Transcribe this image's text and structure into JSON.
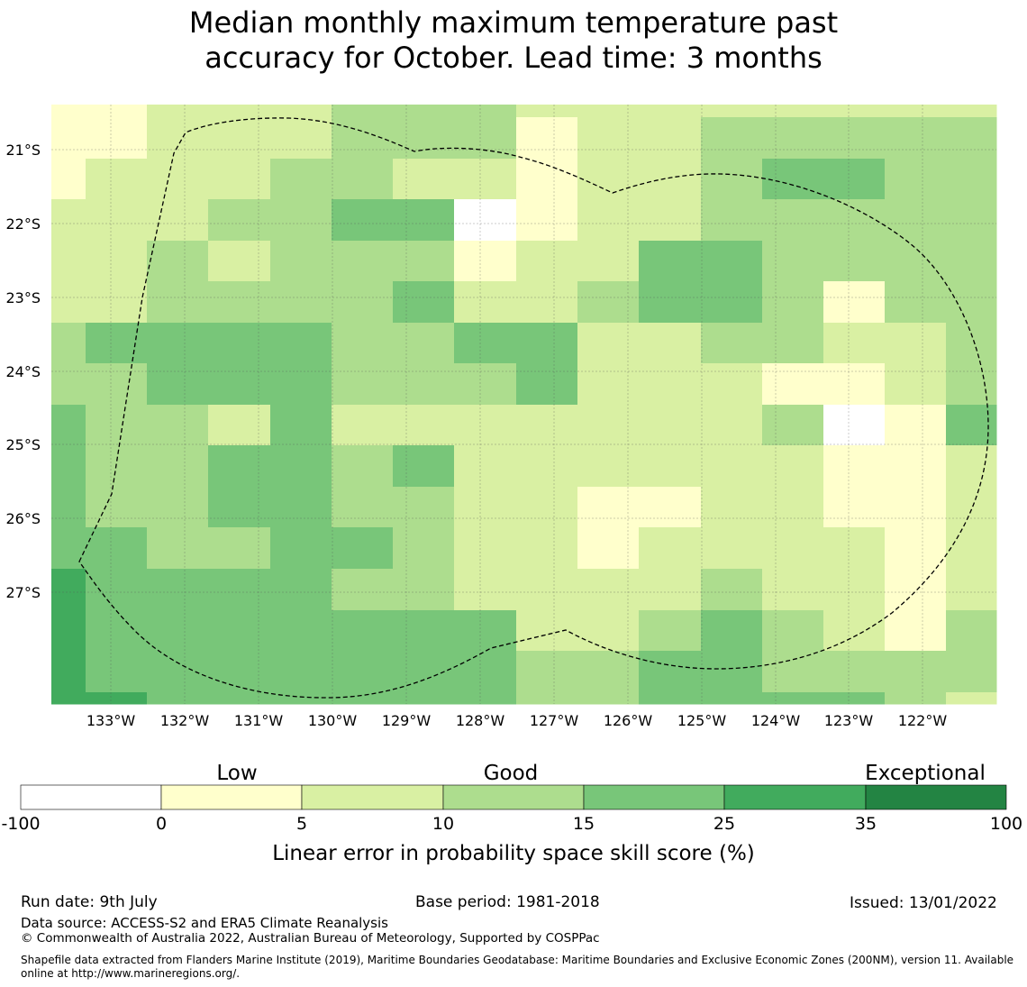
{
  "title_line1": "Median monthly maximum temperature past",
  "title_line2": "accuracy for October. Lead time: 3 months",
  "map": {
    "lat_labels": [
      "21°S",
      "22°S",
      "23°S",
      "24°S",
      "25°S",
      "26°S",
      "27°S"
    ],
    "lon_labels": [
      "133°W",
      "132°W",
      "131°W",
      "130°W",
      "129°W",
      "128°W",
      "127°W",
      "126°W",
      "125°W",
      "124°W",
      "123°W",
      "122°W"
    ],
    "level_colors": [
      "#ffffff",
      "#ffffcc",
      "#d9f0a3",
      "#addd8e",
      "#78c679",
      "#41ab5d",
      "#238443"
    ],
    "grid_levels": [
      "1122233322222",
      "1222332223333",
      "2233322103333",
      "3223343344333",
      "3222233214443",
      "3224434213433",
      "3444332442333",
      "3444332442333",
      "4443322222233",
      "4433322222223",
      "4344322222233",
      "4343332211122",
      "4334343222111",
      "4434433222111",
      "5433332222211",
      "5433333223221",
      "5434333221223",
      "5444344322223",
      "5444444332222",
      "5444444331112",
      "5444444331113",
      "5444444344113",
      "5444444344113",
      "5444333334333",
      "5444443333333",
      "5444444333332",
      "5444444333332",
      "4444444333332",
      "4444444333332",
      "5444444333332"
    ],
    "grid_row_levels": [
      "1122222222223",
      "1333332223333",
      "2333332223333",
      "2323333223333"
    ]
  },
  "colorbar": {
    "ticks": [
      "-100",
      "0",
      "5",
      "10",
      "15",
      "25",
      "35",
      "100"
    ],
    "colors": [
      "#ffffff",
      "#ffffcc",
      "#d9f0a3",
      "#addd8e",
      "#78c679",
      "#41ab5d",
      "#238443"
    ],
    "category_low": "Low",
    "category_good": "Good",
    "category_exceptional": "Exceptional",
    "label": "Linear error in probability space skill score (%)"
  },
  "footer": {
    "run_date": "Run date: 9th July",
    "base_period": "Base period: 1981-2018",
    "issued": "Issued: 13/01/2022",
    "data_source": "Data source: ACCESS-S2 and ERA5 Climate Reanalysis",
    "copyright": "© Commonwealth of Australia 2022, Australian Bureau of Meteorology, Supported by COSPPac",
    "shapefile": "Shapefile data extracted from Flanders Marine Institute (2019), Maritime Boundaries Geodatabase: Maritime Boundaries and Exclusive Economic Zones (200NM), version 11. Available online at http://www.marineregions.org/."
  }
}
